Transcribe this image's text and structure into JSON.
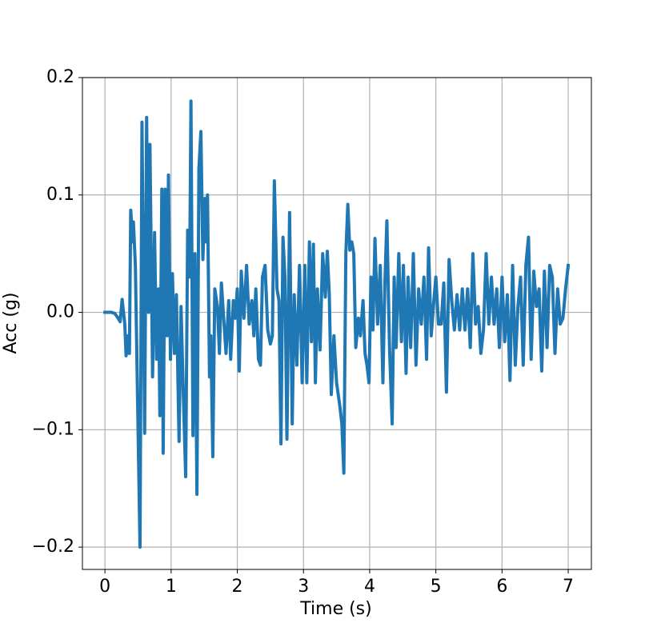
{
  "chart_data": {
    "type": "line",
    "x_label": "Time (s)",
    "y_label": "Acc (g)",
    "xlim": [
      -0.34,
      7.35
    ],
    "ylim": [
      -0.219,
      0.2
    ],
    "xticks": [
      0,
      1,
      2,
      3,
      4,
      5,
      6,
      7
    ],
    "yticks": [
      {
        "value": -0.2,
        "label": "−0.2"
      },
      {
        "value": -0.1,
        "label": "−0.1"
      },
      {
        "value": 0,
        "label": "0.0"
      },
      {
        "value": 0.1,
        "label": "0.1"
      },
      {
        "value": 0.2,
        "label": "0.2"
      }
    ],
    "grid": true,
    "x": [
      0,
      0.1,
      0.15,
      0.2,
      0.23,
      0.26,
      0.3,
      0.32,
      0.35,
      0.37,
      0.39,
      0.42,
      0.43,
      0.46,
      0.53,
      0.56,
      0.6,
      0.63,
      0.66,
      0.68,
      0.72,
      0.75,
      0.78,
      0.81,
      0.83,
      0.86,
      0.88,
      0.91,
      0.94,
      0.96,
      0.99,
      1.02,
      1.05,
      1.08,
      1.12,
      1.15,
      1.18,
      1.22,
      1.25,
      1.28,
      1.3,
      1.33,
      1.36,
      1.39,
      1.42,
      1.45,
      1.48,
      1.51,
      1.53,
      1.55,
      1.58,
      1.6,
      1.63,
      1.66,
      1.7,
      1.73,
      1.76,
      1.8,
      1.83,
      1.87,
      1.9,
      1.94,
      1.97,
      2.0,
      2.03,
      2.06,
      2.1,
      2.14,
      2.18,
      2.22,
      2.25,
      2.28,
      2.32,
      2.35,
      2.38,
      2.42,
      2.46,
      2.5,
      2.53,
      2.56,
      2.6,
      2.63,
      2.66,
      2.69,
      2.72,
      2.75,
      2.79,
      2.83,
      2.86,
      2.9,
      2.94,
      2.98,
      3.02,
      3.05,
      3.09,
      3.12,
      3.15,
      3.18,
      3.21,
      3.25,
      3.29,
      3.33,
      3.36,
      3.39,
      3.42,
      3.46,
      3.5,
      3.55,
      3.58,
      3.61,
      3.64,
      3.67,
      3.7,
      3.73,
      3.76,
      3.79,
      3.83,
      3.86,
      3.9,
      3.93,
      3.96,
      3.99,
      4.02,
      4.05,
      4.08,
      4.12,
      4.16,
      4.2,
      4.23,
      4.26,
      4.3,
      4.34,
      4.37,
      4.4,
      4.44,
      4.48,
      4.51,
      4.55,
      4.58,
      4.62,
      4.66,
      4.7,
      4.74,
      4.78,
      4.82,
      4.86,
      4.89,
      4.93,
      4.97,
      5.0,
      5.04,
      5.08,
      5.12,
      5.16,
      5.2,
      5.24,
      5.28,
      5.32,
      5.36,
      5.4,
      5.44,
      5.48,
      5.52,
      5.56,
      5.6,
      5.64,
      5.68,
      5.72,
      5.76,
      5.8,
      5.84,
      5.88,
      5.92,
      5.96,
      6.0,
      6.04,
      6.08,
      6.12,
      6.16,
      6.2,
      6.24,
      6.28,
      6.32,
      6.36,
      6.4,
      6.44,
      6.48,
      6.52,
      6.56,
      6.6,
      6.64,
      6.68,
      6.72,
      6.76,
      6.8,
      6.84,
      6.88,
      6.92,
      6.96,
      7.0
    ],
    "series": [
      {
        "color": "#1f77b4",
        "values": [
          0,
          0,
          -0.001,
          -0.005,
          -0.008,
          0.011,
          -0.01,
          -0.037,
          -0.02,
          -0.035,
          0.087,
          0.06,
          0.077,
          0.04,
          -0.2,
          0.162,
          -0.103,
          0.166,
          0.0,
          0.143,
          -0.055,
          0.068,
          -0.04,
          0.02,
          -0.088,
          0.105,
          -0.12,
          0.105,
          -0.02,
          0.117,
          -0.04,
          0.033,
          -0.035,
          0.015,
          -0.11,
          0.005,
          -0.06,
          -0.14,
          0.07,
          0.03,
          0.18,
          -0.105,
          0.05,
          -0.155,
          0.122,
          0.154,
          0.045,
          0.097,
          0.06,
          0.1,
          -0.055,
          -0.02,
          -0.123,
          0.02,
          0.005,
          -0.035,
          0.025,
          -0.01,
          -0.035,
          0.01,
          -0.04,
          0.01,
          -0.005,
          0.02,
          -0.05,
          0.035,
          -0.005,
          0.04,
          -0.01,
          0.01,
          -0.02,
          0.02,
          -0.04,
          -0.045,
          0.03,
          0.04,
          -0.015,
          -0.027,
          -0.02,
          0.112,
          0.02,
          0.01,
          -0.112,
          0.064,
          0.03,
          -0.108,
          0.085,
          -0.095,
          0.015,
          -0.045,
          0.04,
          -0.06,
          0.04,
          -0.06,
          0.06,
          -0.025,
          0.058,
          -0.06,
          0.02,
          -0.032,
          0.05,
          0.013,
          0.052,
          0.015,
          -0.07,
          -0.02,
          -0.06,
          -0.08,
          -0.095,
          -0.137,
          0.05,
          0.092,
          0.053,
          0.06,
          0.05,
          -0.03,
          -0.005,
          -0.02,
          0.01,
          -0.035,
          -0.045,
          -0.06,
          0.03,
          -0.015,
          0.063,
          -0.01,
          0.04,
          -0.06,
          0.025,
          0.078,
          -0.03,
          -0.095,
          0.03,
          -0.03,
          0.05,
          -0.025,
          0.04,
          -0.052,
          0.03,
          -0.03,
          0.05,
          -0.045,
          0.02,
          -0.01,
          0.03,
          -0.04,
          0.055,
          -0.02,
          0.01,
          0.03,
          -0.01,
          -0.01,
          0.025,
          -0.068,
          0.045,
          0.01,
          -0.015,
          0.015,
          -0.015,
          0.02,
          -0.015,
          0.02,
          -0.03,
          0.05,
          -0.01,
          0.005,
          -0.035,
          -0.015,
          0.05,
          -0.01,
          0.03,
          -0.01,
          0.02,
          -0.03,
          0.03,
          -0.025,
          0.015,
          -0.058,
          0.04,
          -0.045,
          0.005,
          0.03,
          -0.045,
          0.04,
          0.064,
          -0.04,
          0.035,
          0.005,
          0.02,
          -0.05,
          0.035,
          -0.03,
          0.04,
          0.03,
          -0.035,
          0.02,
          -0.01,
          -0.005,
          0.02,
          0.04
        ]
      }
    ]
  }
}
